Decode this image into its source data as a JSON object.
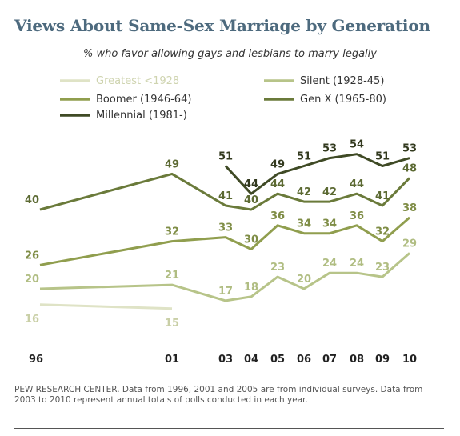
{
  "chart_data": {
    "type": "line",
    "title": "Views About Same-Sex Marriage by Generation",
    "subtitle": "% who favor allowing gays and lesbians to marry legally",
    "x": [
      "96",
      "01",
      "03",
      "04",
      "05",
      "06",
      "07",
      "08",
      "09",
      "10"
    ],
    "ylim": [
      0,
      60
    ],
    "grid": false,
    "legend_placement": "top",
    "series": [
      {
        "name": "Greatest <1928",
        "color": "#dfe3c6",
        "values": [
          16,
          15,
          null,
          null,
          null,
          null,
          null,
          null,
          null,
          null
        ]
      },
      {
        "name": "Silent (1928-45)",
        "color": "#b7c489",
        "values": [
          20,
          21,
          17,
          18,
          23,
          20,
          24,
          24,
          23,
          29
        ]
      },
      {
        "name": "Boomer (1946-64)",
        "color": "#909e4e",
        "values": [
          26,
          32,
          33,
          30,
          36,
          34,
          34,
          36,
          32,
          38
        ]
      },
      {
        "name": "Gen X (1965-80)",
        "color": "#6a7a3a",
        "values": [
          40,
          49,
          41,
          40,
          44,
          42,
          42,
          44,
          41,
          48
        ]
      },
      {
        "name": "Millennial (1981-)",
        "color": "#3f4a25",
        "values": [
          null,
          null,
          51,
          44,
          49,
          51,
          53,
          54,
          51,
          53
        ]
      }
    ]
  },
  "source_note": "PEW RESEARCH CENTER. Data from 1996, 2001 and 2005 are from individual surveys. Data from 2003 to 2010 represent annual totals of polls conducted in each year."
}
